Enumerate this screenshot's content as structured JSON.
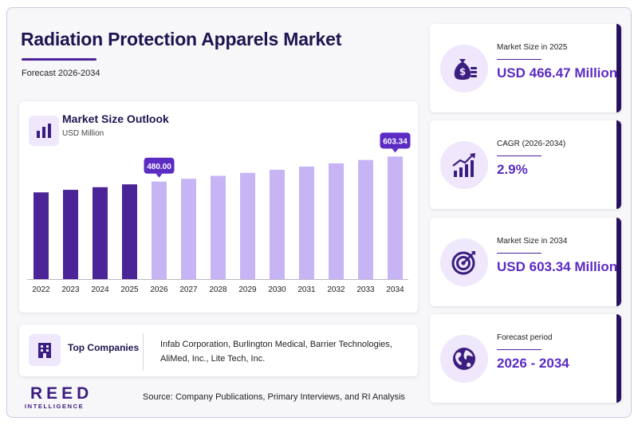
{
  "header": {
    "title": "Radiation Protection Apparels Market",
    "subtitle": "Forecast 2026-2034"
  },
  "chart_card": {
    "title": "Market Size Outlook",
    "unit": "USD Million",
    "icon": "bar-chart-icon"
  },
  "chart_data": {
    "type": "bar",
    "title": "Market Size Outlook",
    "ylabel": "USD Million",
    "categories": [
      "2022",
      "2023",
      "2024",
      "2025",
      "2026",
      "2027",
      "2028",
      "2029",
      "2030",
      "2031",
      "2032",
      "2033",
      "2034"
    ],
    "values": [
      427.0,
      439.5,
      452.5,
      466.47,
      480.0,
      493.9,
      508.3,
      523.0,
      538.2,
      553.8,
      569.9,
      586.4,
      603.34
    ],
    "data_labels": [
      {
        "category": "2026",
        "label": "480.00"
      },
      {
        "category": "2034",
        "label": "603.34"
      }
    ],
    "historical_categories": [
      "2022",
      "2023",
      "2024",
      "2025"
    ],
    "colors": {
      "historical": "#4b2497",
      "forecast": "#c7b4f4",
      "label_bg": "#5b2bc4"
    },
    "ylim": [
      0,
      640
    ],
    "grid": false,
    "legend": "none"
  },
  "companies": {
    "label": "Top Companies",
    "icon": "building-icon",
    "text": "Infab Corporation, Burlington Medical, Barrier Technologies, AliMed, Inc., Lite Tech, Inc."
  },
  "footer": {
    "logo_main": "REED",
    "logo_sub": "INTELLIGENCE",
    "source": "Source: Company Publications, Primary Interviews, and RI Analysis"
  },
  "kpis": [
    {
      "label": "Market Size in 2025",
      "value": "USD 466.47 Million",
      "icon": "money-bag-icon"
    },
    {
      "label": "CAGR (2026-2034)",
      "value": "2.9%",
      "icon": "growth-chart-icon"
    },
    {
      "label": "Market Size in 2034",
      "value": "USD 603.34 Million",
      "icon": "target-icon"
    },
    {
      "label": "Forecast period",
      "value": "2026 - 2034",
      "icon": "globe-icon"
    }
  ],
  "colors": {
    "title": "#1e1450",
    "accent": "#5b2bc4",
    "dark_accent": "#4b2497",
    "icon_bg": "#efe7fb"
  }
}
